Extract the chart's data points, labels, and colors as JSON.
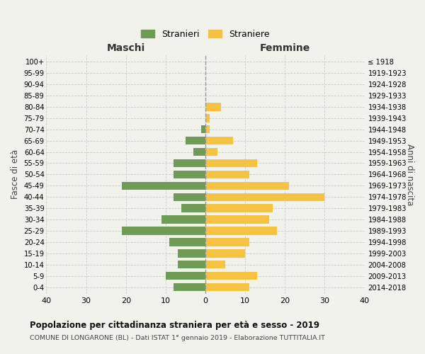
{
  "age_groups": [
    "0-4",
    "5-9",
    "10-14",
    "15-19",
    "20-24",
    "25-29",
    "30-34",
    "35-39",
    "40-44",
    "45-49",
    "50-54",
    "55-59",
    "60-64",
    "65-69",
    "70-74",
    "75-79",
    "80-84",
    "85-89",
    "90-94",
    "95-99",
    "100+"
  ],
  "birth_years": [
    "2014-2018",
    "2009-2013",
    "2004-2008",
    "1999-2003",
    "1994-1998",
    "1989-1993",
    "1984-1988",
    "1979-1983",
    "1974-1978",
    "1969-1973",
    "1964-1968",
    "1959-1963",
    "1954-1958",
    "1949-1953",
    "1944-1948",
    "1939-1943",
    "1934-1938",
    "1929-1933",
    "1924-1928",
    "1919-1923",
    "≤ 1918"
  ],
  "males": [
    8,
    10,
    7,
    7,
    9,
    21,
    11,
    6,
    8,
    21,
    8,
    8,
    3,
    5,
    1,
    0,
    0,
    0,
    0,
    0,
    0
  ],
  "females": [
    11,
    13,
    5,
    10,
    11,
    18,
    16,
    17,
    30,
    21,
    11,
    13,
    3,
    7,
    1,
    1,
    4,
    0,
    0,
    0,
    0
  ],
  "male_color": "#6e9c57",
  "female_color": "#f5c242",
  "background_color": "#f2f2ed",
  "title": "Popolazione per cittadinanza straniera per età e sesso - 2019",
  "subtitle": "COMUNE DI LONGARONE (BL) - Dati ISTAT 1° gennaio 2019 - Elaborazione TUTTITALIA.IT",
  "xlabel_left": "Maschi",
  "xlabel_right": "Femmine",
  "ylabel_left": "Fasce di età",
  "ylabel_right": "Anni di nascita",
  "legend_male": "Stranieri",
  "legend_female": "Straniere",
  "xlim": 40,
  "grid_color": "#cccccc"
}
